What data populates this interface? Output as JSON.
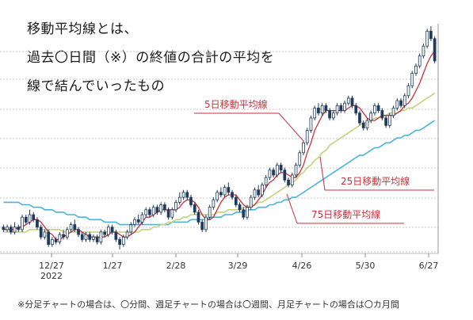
{
  "heading": {
    "line1": "移動平均線とは、",
    "line2": "過去〇日間（※）の終値の合計の平均を",
    "line3": "線で結んでいったもの"
  },
  "footnote": "※分足チャートの場合は、〇分間、週足チャートの場合は〇週間、月足チャートの場合は〇カ月間",
  "colors": {
    "up_candle": "#ffffff",
    "down_candle": "#1f3a5c",
    "ma5": "#c8323c",
    "ma25": "#c3d27c",
    "ma75": "#49b4d8",
    "annotation": "#c8323c",
    "grid": "#c8c8c8"
  },
  "chart_data": {
    "type": "line",
    "title": "",
    "xlabel": "",
    "ylabel": "",
    "x_ticks": [
      "12/27",
      "1/27",
      "2/28",
      "3/29",
      "4/26",
      "5/30",
      "6/27"
    ],
    "x_year_label": "2022",
    "candles": [
      [
        0.38,
        0.37,
        0.39,
        0.36
      ],
      [
        0.37,
        0.38,
        0.39,
        0.36
      ],
      [
        0.38,
        0.36,
        0.39,
        0.35
      ],
      [
        0.36,
        0.38,
        0.4,
        0.35
      ],
      [
        0.38,
        0.37,
        0.39,
        0.36
      ],
      [
        0.37,
        0.42,
        0.43,
        0.36
      ],
      [
        0.42,
        0.4,
        0.43,
        0.39
      ],
      [
        0.4,
        0.43,
        0.45,
        0.39
      ],
      [
        0.43,
        0.41,
        0.44,
        0.4
      ],
      [
        0.41,
        0.38,
        0.42,
        0.37
      ],
      [
        0.38,
        0.34,
        0.39,
        0.33
      ],
      [
        0.34,
        0.36,
        0.37,
        0.33
      ],
      [
        0.36,
        0.31,
        0.37,
        0.3
      ],
      [
        0.31,
        0.33,
        0.34,
        0.3
      ],
      [
        0.33,
        0.32,
        0.34,
        0.31
      ],
      [
        0.32,
        0.35,
        0.36,
        0.31
      ],
      [
        0.35,
        0.34,
        0.37,
        0.33
      ],
      [
        0.34,
        0.37,
        0.38,
        0.33
      ],
      [
        0.37,
        0.39,
        0.4,
        0.36
      ],
      [
        0.39,
        0.37,
        0.41,
        0.36
      ],
      [
        0.37,
        0.35,
        0.38,
        0.34
      ],
      [
        0.35,
        0.33,
        0.36,
        0.32
      ],
      [
        0.33,
        0.35,
        0.36,
        0.32
      ],
      [
        0.35,
        0.33,
        0.36,
        0.32
      ],
      [
        0.33,
        0.34,
        0.35,
        0.32
      ],
      [
        0.34,
        0.32,
        0.35,
        0.31
      ],
      [
        0.32,
        0.36,
        0.37,
        0.31
      ],
      [
        0.36,
        0.35,
        0.37,
        0.34
      ],
      [
        0.35,
        0.38,
        0.39,
        0.34
      ],
      [
        0.38,
        0.36,
        0.39,
        0.35
      ],
      [
        0.36,
        0.33,
        0.37,
        0.32
      ],
      [
        0.33,
        0.31,
        0.34,
        0.29
      ],
      [
        0.31,
        0.34,
        0.35,
        0.3
      ],
      [
        0.34,
        0.36,
        0.37,
        0.33
      ],
      [
        0.36,
        0.39,
        0.4,
        0.35
      ],
      [
        0.39,
        0.41,
        0.42,
        0.38
      ],
      [
        0.41,
        0.4,
        0.43,
        0.39
      ],
      [
        0.4,
        0.43,
        0.44,
        0.39
      ],
      [
        0.43,
        0.45,
        0.46,
        0.42
      ],
      [
        0.45,
        0.43,
        0.46,
        0.42
      ],
      [
        0.43,
        0.46,
        0.47,
        0.42
      ],
      [
        0.46,
        0.44,
        0.47,
        0.43
      ],
      [
        0.44,
        0.47,
        0.48,
        0.43
      ],
      [
        0.47,
        0.45,
        0.48,
        0.44
      ],
      [
        0.45,
        0.42,
        0.46,
        0.41
      ],
      [
        0.42,
        0.45,
        0.46,
        0.41
      ],
      [
        0.45,
        0.48,
        0.49,
        0.44
      ],
      [
        0.48,
        0.5,
        0.52,
        0.47
      ],
      [
        0.5,
        0.52,
        0.53,
        0.49
      ],
      [
        0.52,
        0.5,
        0.53,
        0.49
      ],
      [
        0.5,
        0.47,
        0.51,
        0.46
      ],
      [
        0.47,
        0.44,
        0.48,
        0.43
      ],
      [
        0.44,
        0.4,
        0.45,
        0.39
      ],
      [
        0.4,
        0.37,
        0.41,
        0.36
      ],
      [
        0.37,
        0.42,
        0.43,
        0.36
      ],
      [
        0.42,
        0.46,
        0.47,
        0.41
      ],
      [
        0.46,
        0.49,
        0.5,
        0.45
      ],
      [
        0.49,
        0.52,
        0.53,
        0.48
      ],
      [
        0.52,
        0.51,
        0.54,
        0.5
      ],
      [
        0.51,
        0.54,
        0.55,
        0.5
      ],
      [
        0.54,
        0.52,
        0.56,
        0.51
      ],
      [
        0.52,
        0.5,
        0.53,
        0.49
      ],
      [
        0.5,
        0.47,
        0.51,
        0.46
      ],
      [
        0.47,
        0.45,
        0.48,
        0.44
      ],
      [
        0.45,
        0.42,
        0.46,
        0.41
      ],
      [
        0.42,
        0.46,
        0.47,
        0.41
      ],
      [
        0.46,
        0.5,
        0.51,
        0.45
      ],
      [
        0.5,
        0.53,
        0.54,
        0.49
      ],
      [
        0.53,
        0.51,
        0.55,
        0.5
      ],
      [
        0.51,
        0.55,
        0.56,
        0.5
      ],
      [
        0.55,
        0.58,
        0.59,
        0.54
      ],
      [
        0.58,
        0.61,
        0.62,
        0.57
      ],
      [
        0.61,
        0.59,
        0.62,
        0.58
      ],
      [
        0.59,
        0.63,
        0.64,
        0.58
      ],
      [
        0.63,
        0.61,
        0.64,
        0.6
      ],
      [
        0.61,
        0.57,
        0.62,
        0.56
      ],
      [
        0.57,
        0.55,
        0.58,
        0.54
      ],
      [
        0.55,
        0.59,
        0.6,
        0.54
      ],
      [
        0.59,
        0.63,
        0.64,
        0.58
      ],
      [
        0.63,
        0.68,
        0.69,
        0.62
      ],
      [
        0.68,
        0.72,
        0.73,
        0.67
      ],
      [
        0.72,
        0.77,
        0.78,
        0.71
      ],
      [
        0.77,
        0.82,
        0.83,
        0.76
      ],
      [
        0.82,
        0.86,
        0.87,
        0.81
      ],
      [
        0.86,
        0.84,
        0.88,
        0.83
      ],
      [
        0.84,
        0.87,
        0.88,
        0.83
      ],
      [
        0.87,
        0.85,
        0.88,
        0.84
      ],
      [
        0.85,
        0.82,
        0.86,
        0.81
      ],
      [
        0.82,
        0.84,
        0.85,
        0.81
      ],
      [
        0.84,
        0.87,
        0.88,
        0.83
      ],
      [
        0.87,
        0.85,
        0.88,
        0.84
      ],
      [
        0.85,
        0.88,
        0.89,
        0.84
      ],
      [
        0.88,
        0.9,
        0.91,
        0.87
      ],
      [
        0.9,
        0.87,
        0.91,
        0.86
      ],
      [
        0.87,
        0.84,
        0.88,
        0.83
      ],
      [
        0.84,
        0.8,
        0.85,
        0.79
      ],
      [
        0.8,
        0.78,
        0.81,
        0.77
      ],
      [
        0.78,
        0.81,
        0.82,
        0.77
      ],
      [
        0.81,
        0.84,
        0.85,
        0.8
      ],
      [
        0.84,
        0.87,
        0.88,
        0.83
      ],
      [
        0.87,
        0.85,
        0.88,
        0.84
      ],
      [
        0.85,
        0.82,
        0.86,
        0.81
      ],
      [
        0.82,
        0.79,
        0.83,
        0.78
      ],
      [
        0.79,
        0.83,
        0.84,
        0.78
      ],
      [
        0.83,
        0.86,
        0.87,
        0.82
      ],
      [
        0.86,
        0.89,
        0.9,
        0.85
      ],
      [
        0.89,
        0.87,
        0.9,
        0.86
      ],
      [
        0.87,
        0.91,
        0.92,
        0.86
      ],
      [
        0.91,
        0.95,
        0.96,
        0.9
      ],
      [
        0.95,
        1.0,
        1.01,
        0.94
      ],
      [
        1.0,
        1.03,
        1.04,
        0.99
      ],
      [
        1.03,
        1.07,
        1.08,
        1.02
      ],
      [
        1.07,
        1.11,
        1.12,
        1.06
      ],
      [
        1.11,
        1.17,
        1.18,
        1.1
      ],
      [
        1.17,
        1.14,
        1.19,
        1.13
      ],
      [
        1.14,
        1.05,
        1.15,
        1.04
      ]
    ],
    "ylim": [
      0.28,
      1.2
    ],
    "series": [
      {
        "name": "5日移動平均線",
        "values": [
          0.37,
          0.37,
          0.37,
          0.37,
          0.38,
          0.38,
          0.39,
          0.4,
          0.41,
          0.41,
          0.4,
          0.38,
          0.36,
          0.35,
          0.33,
          0.33,
          0.34,
          0.35,
          0.36,
          0.37,
          0.37,
          0.36,
          0.35,
          0.34,
          0.34,
          0.34,
          0.34,
          0.34,
          0.35,
          0.36,
          0.36,
          0.35,
          0.34,
          0.34,
          0.35,
          0.36,
          0.38,
          0.4,
          0.42,
          0.42,
          0.43,
          0.44,
          0.45,
          0.45,
          0.45,
          0.45,
          0.45,
          0.46,
          0.48,
          0.49,
          0.49,
          0.48,
          0.46,
          0.43,
          0.41,
          0.41,
          0.42,
          0.45,
          0.48,
          0.5,
          0.51,
          0.51,
          0.51,
          0.49,
          0.47,
          0.46,
          0.46,
          0.47,
          0.49,
          0.51,
          0.54,
          0.56,
          0.57,
          0.59,
          0.6,
          0.6,
          0.59,
          0.58,
          0.58,
          0.6,
          0.63,
          0.68,
          0.72,
          0.77,
          0.8,
          0.83,
          0.85,
          0.85,
          0.85,
          0.85,
          0.85,
          0.85,
          0.86,
          0.87,
          0.87,
          0.86,
          0.84,
          0.82,
          0.81,
          0.81,
          0.82,
          0.83,
          0.83,
          0.83,
          0.83,
          0.84,
          0.85,
          0.87,
          0.88,
          0.9,
          0.93,
          0.96,
          1.0,
          1.04,
          1.07,
          1.09
        ]
      },
      {
        "name": "25日移動平均線",
        "values": [
          0.36,
          0.36,
          0.36,
          0.36,
          0.36,
          0.36,
          0.36,
          0.37,
          0.37,
          0.37,
          0.37,
          0.37,
          0.37,
          0.37,
          0.37,
          0.37,
          0.36,
          0.36,
          0.36,
          0.36,
          0.36,
          0.36,
          0.36,
          0.36,
          0.36,
          0.36,
          0.36,
          0.36,
          0.36,
          0.36,
          0.36,
          0.36,
          0.36,
          0.36,
          0.36,
          0.36,
          0.36,
          0.37,
          0.37,
          0.37,
          0.38,
          0.38,
          0.39,
          0.39,
          0.4,
          0.4,
          0.41,
          0.41,
          0.42,
          0.42,
          0.43,
          0.43,
          0.43,
          0.43,
          0.43,
          0.43,
          0.43,
          0.44,
          0.44,
          0.44,
          0.45,
          0.45,
          0.45,
          0.45,
          0.46,
          0.46,
          0.47,
          0.47,
          0.48,
          0.48,
          0.49,
          0.5,
          0.51,
          0.52,
          0.53,
          0.54,
          0.55,
          0.56,
          0.57,
          0.59,
          0.6,
          0.62,
          0.63,
          0.65,
          0.66,
          0.68,
          0.69,
          0.71,
          0.72,
          0.73,
          0.74,
          0.75,
          0.76,
          0.77,
          0.78,
          0.79,
          0.8,
          0.8,
          0.81,
          0.82,
          0.82,
          0.83,
          0.83,
          0.84,
          0.84,
          0.84,
          0.85,
          0.85,
          0.86,
          0.86,
          0.87,
          0.88,
          0.89,
          0.9,
          0.91,
          0.92
        ]
      },
      {
        "name": "75日移動平均線",
        "values": [
          0.48,
          0.48,
          0.48,
          0.48,
          0.48,
          0.47,
          0.47,
          0.47,
          0.46,
          0.46,
          0.46,
          0.45,
          0.45,
          0.45,
          0.44,
          0.44,
          0.44,
          0.43,
          0.43,
          0.43,
          0.42,
          0.42,
          0.42,
          0.41,
          0.41,
          0.41,
          0.41,
          0.4,
          0.4,
          0.4,
          0.4,
          0.39,
          0.39,
          0.39,
          0.39,
          0.39,
          0.39,
          0.39,
          0.39,
          0.39,
          0.39,
          0.39,
          0.39,
          0.39,
          0.39,
          0.4,
          0.4,
          0.4,
          0.4,
          0.4,
          0.41,
          0.41,
          0.41,
          0.41,
          0.41,
          0.42,
          0.42,
          0.42,
          0.42,
          0.43,
          0.43,
          0.43,
          0.44,
          0.44,
          0.44,
          0.45,
          0.45,
          0.45,
          0.46,
          0.46,
          0.46,
          0.47,
          0.47,
          0.48,
          0.48,
          0.49,
          0.49,
          0.5,
          0.5,
          0.51,
          0.52,
          0.53,
          0.54,
          0.55,
          0.56,
          0.57,
          0.58,
          0.59,
          0.6,
          0.61,
          0.62,
          0.63,
          0.64,
          0.65,
          0.66,
          0.67,
          0.67,
          0.68,
          0.69,
          0.7,
          0.7,
          0.71,
          0.72,
          0.72,
          0.73,
          0.74,
          0.74,
          0.75,
          0.75,
          0.76,
          0.77,
          0.77,
          0.78,
          0.79,
          0.8,
          0.81
        ]
      }
    ],
    "annotations": [
      {
        "label": "5日移動平均線",
        "series": "5日移動平均線"
      },
      {
        "label": "25日移動平均線",
        "series": "25日移動平均線"
      },
      {
        "label": "75日移動平均線",
        "series": "75日移動平均線"
      }
    ],
    "grid": true,
    "legend": "none"
  }
}
